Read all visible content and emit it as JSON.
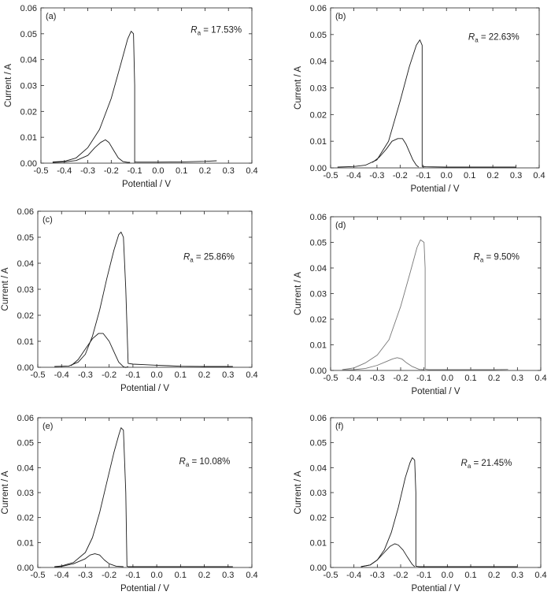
{
  "figure": {
    "background": "#ffffff",
    "line_color": "#1a1a1a",
    "light_line_color": "#777777"
  },
  "chart_data": [
    {
      "type": "line",
      "panel_label": "(a)",
      "annotation_value": " = 17.53%",
      "xlabel": "Potential / V",
      "ylabel": "Current / A",
      "xlim": [
        -0.5,
        0.4
      ],
      "ylim": [
        0,
        0.06
      ],
      "xticks": [
        "-0.5",
        "-0.4",
        "-0.3",
        "-0.2",
        "-0.1",
        "0.0",
        "0.1",
        "0.2",
        "0.3",
        "0.4"
      ],
      "yticks": [
        "0.00",
        "0.01",
        "0.02",
        "0.03",
        "0.04",
        "0.05",
        "0.06"
      ],
      "series": [
        {
          "x": [
            -0.45,
            -0.4,
            -0.35,
            -0.3,
            -0.25,
            -0.2,
            -0.16,
            -0.13,
            -0.115,
            -0.105,
            -0.1,
            -0.1,
            -0.09,
            0.0,
            0.1,
            0.2,
            0.25
          ],
          "y": [
            0.0005,
            0.0007,
            0.002,
            0.006,
            0.013,
            0.025,
            0.038,
            0.048,
            0.051,
            0.05,
            0.03,
            0.0005,
            0.0004,
            0.0004,
            0.0005,
            0.0007,
            0.0009
          ]
        },
        {
          "x": [
            -0.45,
            -0.4,
            -0.35,
            -0.3,
            -0.27,
            -0.245,
            -0.225,
            -0.21,
            -0.19,
            -0.17,
            -0.15,
            -0.13,
            -0.12
          ],
          "y": [
            0.0003,
            0.0005,
            0.001,
            0.003,
            0.006,
            0.008,
            0.009,
            0.008,
            0.005,
            0.002,
            0.0006,
            0.0003,
            0.0003
          ]
        }
      ]
    },
    {
      "type": "line",
      "panel_label": "(b)",
      "annotation_value": " = 22.63%",
      "xlabel": "Potential / V",
      "ylabel": "Current / A",
      "xlim": [
        -0.5,
        0.4
      ],
      "ylim": [
        0,
        0.06
      ],
      "xticks": [
        "-0.5",
        "-0.4",
        "-0.3",
        "-0.2",
        "-0.1",
        "0.0",
        "0.1",
        "0.2",
        "0.3",
        "0.4"
      ],
      "yticks": [
        "0.00",
        "0.01",
        "0.02",
        "0.03",
        "0.04",
        "0.05",
        "0.06"
      ],
      "series": [
        {
          "x": [
            -0.47,
            -0.4,
            -0.35,
            -0.3,
            -0.25,
            -0.2,
            -0.16,
            -0.13,
            -0.115,
            -0.105,
            -0.105,
            -0.09,
            0.0,
            0.1,
            0.2,
            0.3
          ],
          "y": [
            0.0003,
            0.0005,
            0.001,
            0.003,
            0.01,
            0.025,
            0.038,
            0.046,
            0.048,
            0.046,
            0.0005,
            0.0004,
            0.0003,
            0.0003,
            0.0003,
            0.0003
          ]
        },
        {
          "x": [
            -0.32,
            -0.29,
            -0.26,
            -0.235,
            -0.21,
            -0.19,
            -0.175,
            -0.16,
            -0.145,
            -0.13,
            -0.12
          ],
          "y": [
            0.002,
            0.004,
            0.007,
            0.01,
            0.011,
            0.011,
            0.009,
            0.006,
            0.003,
            0.001,
            0.0003
          ]
        }
      ]
    },
    {
      "type": "line",
      "panel_label": "(c)",
      "annotation_value": " = 25.86%",
      "xlabel": "Potential / V",
      "ylabel": "Current / A",
      "xlim": [
        -0.5,
        0.4
      ],
      "ylim": [
        0,
        0.06
      ],
      "xticks": [
        "-0.5",
        "-0.4",
        "-0.3",
        "-0.2",
        "-0.1",
        "0.0",
        "0.1",
        "0.2",
        "0.3",
        "0.4"
      ],
      "yticks": [
        "0.00",
        "0.01",
        "0.02",
        "0.03",
        "0.04",
        "0.05",
        "0.06"
      ],
      "series": [
        {
          "x": [
            -0.43,
            -0.37,
            -0.33,
            -0.3,
            -0.27,
            -0.24,
            -0.21,
            -0.18,
            -0.16,
            -0.15,
            -0.14,
            -0.13,
            -0.12,
            -0.1,
            -0.05,
            0.0,
            0.05,
            0.1,
            0.2,
            0.32
          ],
          "y": [
            0.0003,
            0.0005,
            0.002,
            0.005,
            0.012,
            0.022,
            0.034,
            0.045,
            0.051,
            0.052,
            0.05,
            0.03,
            0.0015,
            0.0012,
            0.001,
            0.0008,
            0.0006,
            0.0004,
            0.0003,
            0.0003
          ]
        },
        {
          "x": [
            -0.36,
            -0.33,
            -0.3,
            -0.27,
            -0.245,
            -0.225,
            -0.2,
            -0.18,
            -0.16,
            -0.14,
            -0.13,
            -0.12
          ],
          "y": [
            0.0006,
            0.003,
            0.007,
            0.011,
            0.013,
            0.013,
            0.01,
            0.006,
            0.002,
            0.0002,
            -0.0001,
            0.0003
          ]
        }
      ]
    },
    {
      "type": "line",
      "panel_label": "(d)",
      "annotation_value": " = 9.50%",
      "xlabel": "Potential / V",
      "ylabel": "Current / A",
      "xlim": [
        -0.5,
        0.4
      ],
      "ylim": [
        0,
        0.06
      ],
      "xticks": [
        "-0.5",
        "-0.4",
        "-0.3",
        "-0.2",
        "-0.1",
        "0.0",
        "0.1",
        "0.2",
        "0.3",
        "0.4"
      ],
      "yticks": [
        "0.00",
        "0.01",
        "0.02",
        "0.03",
        "0.04",
        "0.05",
        "0.06"
      ],
      "series": [
        {
          "x": [
            -0.45,
            -0.4,
            -0.35,
            -0.3,
            -0.25,
            -0.2,
            -0.16,
            -0.13,
            -0.115,
            -0.1,
            -0.095,
            -0.095,
            -0.08,
            0.0,
            0.1,
            0.2,
            0.26
          ],
          "y": [
            0.0003,
            0.001,
            0.003,
            0.006,
            0.012,
            0.025,
            0.038,
            0.048,
            0.051,
            0.05,
            0.04,
            0.0005,
            0.0003,
            0.0003,
            0.0003,
            0.0003,
            0.0004
          ]
        },
        {
          "x": [
            -0.45,
            -0.4,
            -0.35,
            -0.3,
            -0.26,
            -0.235,
            -0.215,
            -0.195,
            -0.175,
            -0.15,
            -0.12,
            -0.1
          ],
          "y": [
            0.0002,
            0.0003,
            0.0008,
            0.002,
            0.0035,
            0.0045,
            0.005,
            0.0045,
            0.003,
            0.0015,
            0.0004,
            0.0003
          ]
        }
      ]
    },
    {
      "type": "line",
      "panel_label": "(e)",
      "annotation_value": " = 10.08%",
      "xlabel": "Potential / V",
      "ylabel": "Current / A",
      "xlim": [
        -0.5,
        0.4
      ],
      "ylim": [
        0,
        0.06
      ],
      "xticks": [
        "-0.5",
        "-0.4",
        "-0.3",
        "-0.2",
        "-0.1",
        "0.0",
        "0.1",
        "0.2",
        "0.3",
        "0.4"
      ],
      "yticks": [
        "0.00",
        "0.01",
        "0.02",
        "0.03",
        "0.04",
        "0.05",
        "0.06"
      ],
      "series": [
        {
          "x": [
            -0.43,
            -0.4,
            -0.35,
            -0.3,
            -0.27,
            -0.24,
            -0.21,
            -0.18,
            -0.16,
            -0.15,
            -0.14,
            -0.13,
            -0.125,
            -0.12,
            -0.1,
            0.0,
            0.1,
            0.2,
            0.32
          ],
          "y": [
            0.0003,
            0.0006,
            0.002,
            0.006,
            0.012,
            0.022,
            0.034,
            0.046,
            0.053,
            0.056,
            0.055,
            0.03,
            0.0005,
            0.0003,
            0.0003,
            0.0003,
            0.0003,
            0.0003,
            0.0003
          ]
        },
        {
          "x": [
            -0.43,
            -0.4,
            -0.35,
            -0.3,
            -0.28,
            -0.26,
            -0.24,
            -0.22,
            -0.2,
            -0.17,
            -0.14
          ],
          "y": [
            0.0002,
            0.0004,
            0.0015,
            0.0035,
            0.005,
            0.0055,
            0.005,
            0.003,
            0.0015,
            0.0005,
            0.0003
          ]
        }
      ]
    },
    {
      "type": "line",
      "panel_label": "(f)",
      "annotation_value": " = 21.45%",
      "xlabel": "Potential / V",
      "ylabel": "Current / A",
      "xlim": [
        -0.5,
        0.4
      ],
      "ylim": [
        0,
        0.06
      ],
      "xticks": [
        "-0.5",
        "-0.4",
        "-0.3",
        "-0.2",
        "-0.1",
        "0.0",
        "0.1",
        "0.2",
        "0.3",
        "0.4"
      ],
      "yticks": [
        "0.00",
        "0.01",
        "0.02",
        "0.03",
        "0.04",
        "0.05",
        "0.06"
      ],
      "series": [
        {
          "x": [
            -0.37,
            -0.33,
            -0.3,
            -0.27,
            -0.24,
            -0.21,
            -0.18,
            -0.16,
            -0.15,
            -0.14,
            -0.135,
            -0.135,
            -0.12,
            -0.1,
            0.0,
            0.1,
            0.2,
            0.3
          ],
          "y": [
            0.0003,
            0.001,
            0.003,
            0.007,
            0.014,
            0.024,
            0.036,
            0.042,
            0.044,
            0.043,
            0.03,
            0.0005,
            0.0003,
            0.0003,
            0.0003,
            0.0003,
            0.0003,
            0.0003
          ]
        },
        {
          "x": [
            -0.37,
            -0.33,
            -0.3,
            -0.27,
            -0.245,
            -0.225,
            -0.21,
            -0.19,
            -0.17,
            -0.15,
            -0.14
          ],
          "y": [
            0.0003,
            0.001,
            0.003,
            0.006,
            0.0085,
            0.0095,
            0.009,
            0.007,
            0.004,
            0.0012,
            0.0003
          ]
        }
      ]
    }
  ]
}
